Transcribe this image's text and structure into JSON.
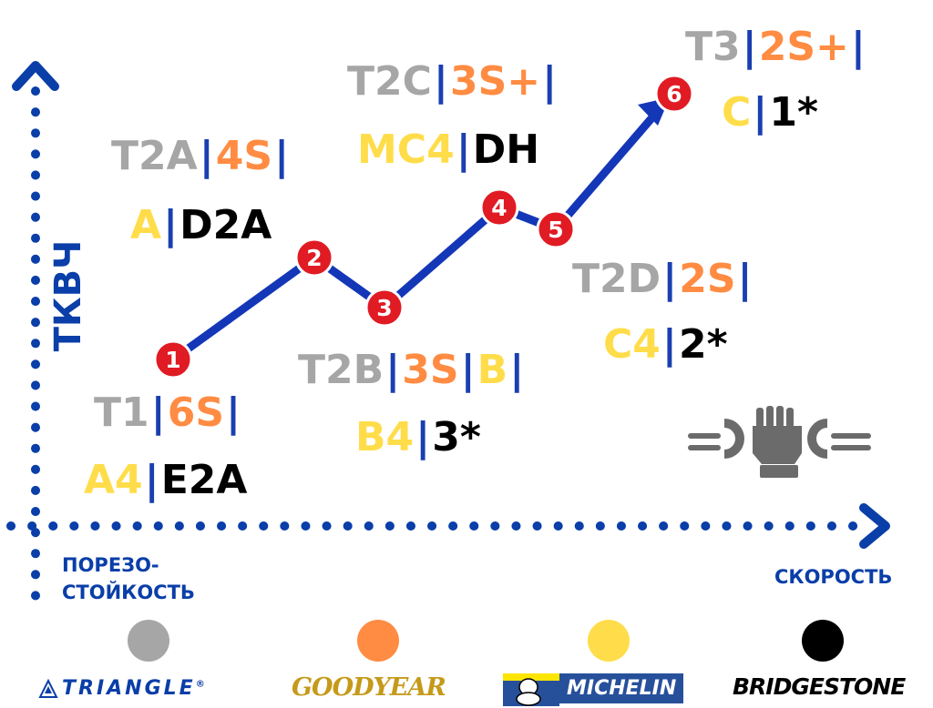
{
  "axes": {
    "y_label": "ТКВЧ",
    "x_label_left_line1": "ПОРЕЗО-",
    "x_label_left_line2": "СТОЙКОСТЬ",
    "x_label_right": "СКОРОСТЬ"
  },
  "points": [
    {
      "id": "1",
      "top": [
        {
          "t": "T1",
          "c": "gray"
        },
        {
          "t": "6S",
          "c": "orange"
        }
      ],
      "bottom": [
        {
          "t": "A4",
          "c": "yellow"
        },
        {
          "t": "E2A",
          "c": "black"
        }
      ]
    },
    {
      "id": "2",
      "top": [
        {
          "t": "T2A",
          "c": "gray"
        },
        {
          "t": "4S",
          "c": "orange"
        }
      ],
      "bottom": [
        {
          "t": "A",
          "c": "yellow"
        },
        {
          "t": "D2A",
          "c": "black"
        }
      ]
    },
    {
      "id": "3",
      "top": [
        {
          "t": "T2B",
          "c": "gray"
        },
        {
          "t": "3S",
          "c": "orange"
        },
        {
          "t": "B",
          "c": "yellow"
        }
      ],
      "bottom": [
        {
          "t": "B4",
          "c": "yellow"
        },
        {
          "t": "3*",
          "c": "black"
        }
      ]
    },
    {
      "id": "4",
      "top": [
        {
          "t": "T2C",
          "c": "gray"
        },
        {
          "t": "3S+",
          "c": "orange"
        }
      ],
      "bottom": [
        {
          "t": "MC4",
          "c": "yellow"
        },
        {
          "t": "DH",
          "c": "black"
        }
      ]
    },
    {
      "id": "5",
      "top": [
        {
          "t": "T2D",
          "c": "gray"
        },
        {
          "t": "2S",
          "c": "orange"
        }
      ],
      "bottom": [
        {
          "t": "C4",
          "c": "yellow"
        },
        {
          "t": "2*",
          "c": "black"
        }
      ]
    },
    {
      "id": "6",
      "top": [
        {
          "t": "T3",
          "c": "gray"
        },
        {
          "t": "2S+",
          "c": "orange"
        }
      ],
      "bottom": [
        {
          "t": "C",
          "c": "yellow"
        },
        {
          "t": "1*",
          "c": "black"
        }
      ]
    }
  ],
  "legend": [
    {
      "brand": "TRIANGLE",
      "mark": "®",
      "color": "#a6a6a6"
    },
    {
      "brand": "GOODYEAR",
      "mark": "",
      "color": "#ff8c42"
    },
    {
      "brand": "MICHELIN",
      "mark": "",
      "color": "#ffdd4a"
    },
    {
      "brand": "BRIDGESTONE",
      "mark": "",
      "color": "#000000"
    }
  ],
  "colors": {
    "axis": "#0a3ea8",
    "line": "#1437b8",
    "marker": "#e01b24",
    "separator": "#1a3fb0"
  },
  "icons": [
    "chevron-up-icon",
    "chevron-right-icon",
    "handshake-tool-icon",
    "michelin-man-icon",
    "triangle-logo-icon"
  ]
}
